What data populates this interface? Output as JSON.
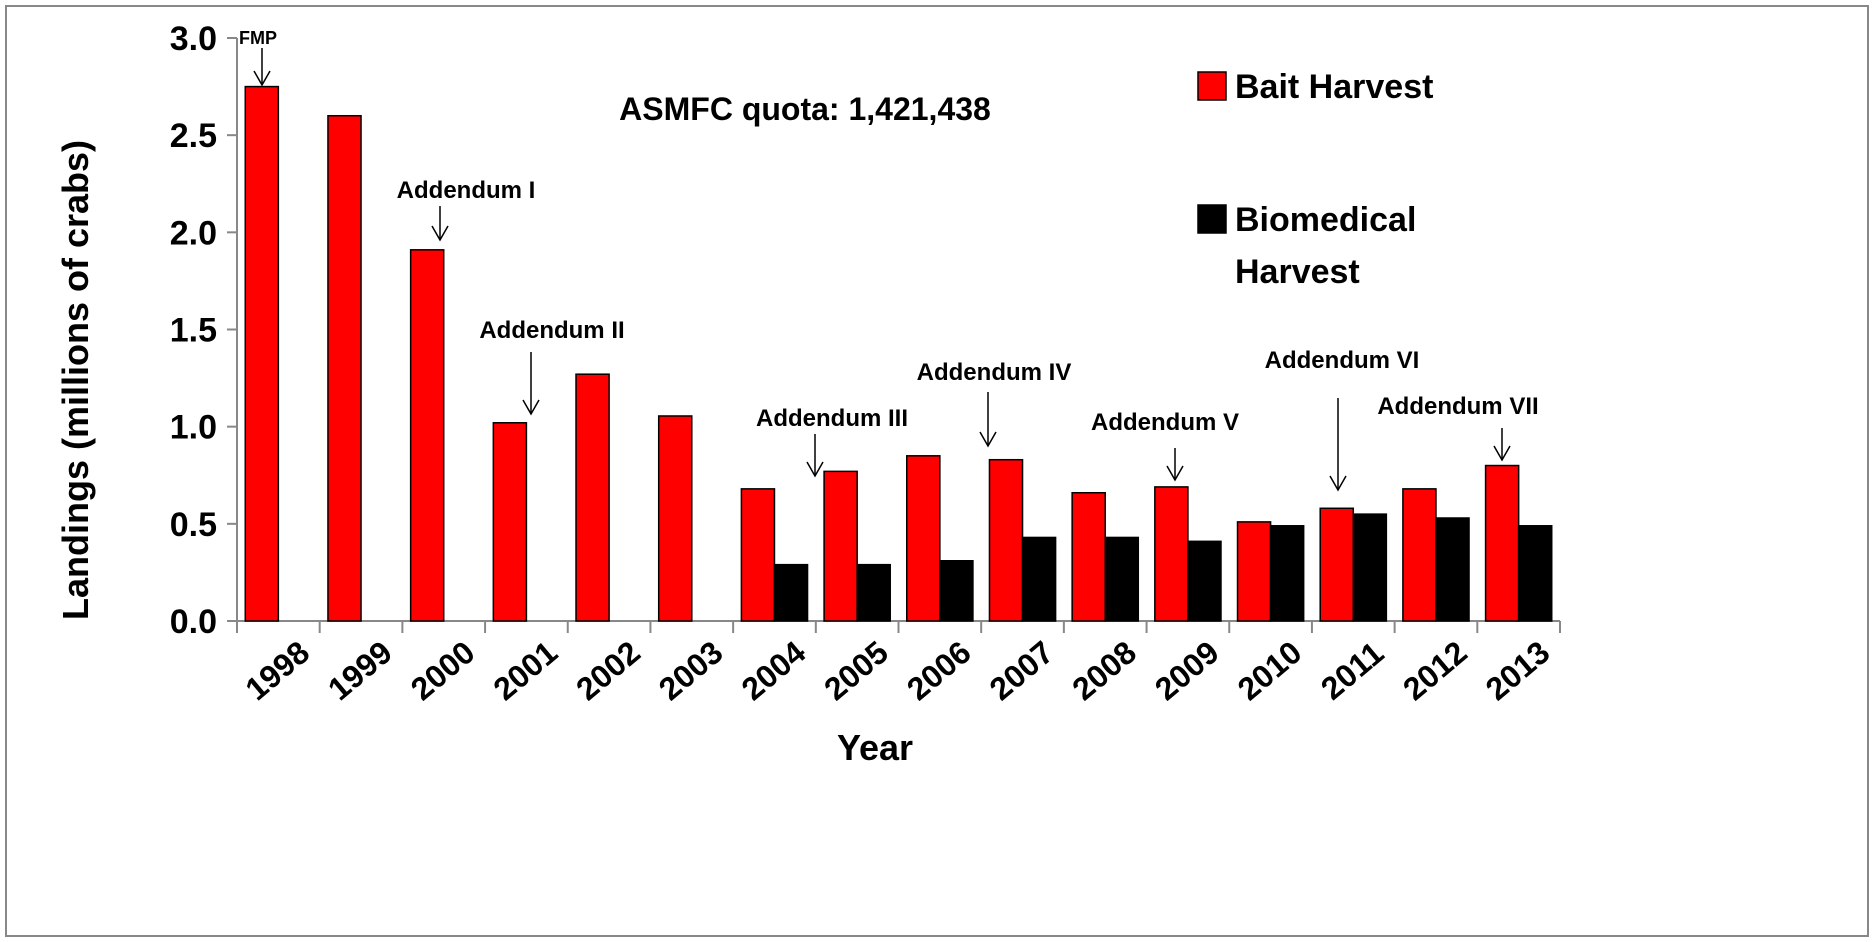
{
  "chart_data": {
    "type": "bar",
    "y_label": "Landings (millions of crabs)",
    "x_label": "Year",
    "annotation": "ASMFC quota: 1,421,438",
    "categories": [
      "1998",
      "1999",
      "2000",
      "2001",
      "2002",
      "2003",
      "2004",
      "2005",
      "2006",
      "2007",
      "2008",
      "2009",
      "2010",
      "2011",
      "2012",
      "2013"
    ],
    "series": [
      {
        "name": "Bait Harvest",
        "color": "#ff0000",
        "values": [
          2.75,
          2.6,
          1.91,
          1.02,
          1.27,
          1.055,
          0.68,
          0.77,
          0.85,
          0.83,
          0.66,
          0.69,
          0.51,
          0.58,
          0.68,
          0.8
        ]
      },
      {
        "name": "Biomedical Harvest",
        "color": "#000000",
        "values": [
          null,
          null,
          null,
          null,
          null,
          null,
          0.29,
          0.29,
          0.31,
          0.43,
          0.43,
          0.41,
          0.49,
          0.55,
          0.53,
          0.49
        ]
      }
    ],
    "events": [
      "FMP",
      "Addendum I",
      "Addendum II",
      "Addendum III",
      "Addendum IV",
      "Addendum V",
      "Addendum VI",
      "Addendum VII"
    ],
    "ylim": [
      0,
      3
    ],
    "yticks": [
      {
        "value": 0,
        "label": "0.0"
      },
      0.5,
      {
        "value": 1,
        "label": "1.0"
      },
      1.5,
      {
        "value": 2,
        "label": "2.0"
      },
      2.5,
      {
        "value": 3,
        "label": "3.0"
      }
    ],
    "legend": "right"
  }
}
